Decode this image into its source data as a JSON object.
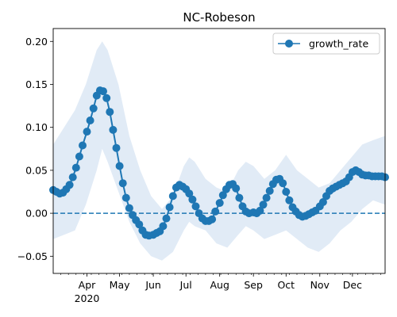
{
  "chart_data": {
    "type": "line",
    "title": "NC-Robeson",
    "xlabel": "",
    "ylabel": "",
    "x_range": [
      "2020-03-01",
      "2020-12-31"
    ],
    "ylim": [
      -0.07,
      0.215
    ],
    "yticks": [
      -0.05,
      0.0,
      0.05,
      0.1,
      0.15,
      0.2
    ],
    "ytick_labels": [
      "−0.05",
      "0.00",
      "0.05",
      "0.10",
      "0.15",
      "0.20"
    ],
    "xticks": [
      "2020-04-01",
      "2020-05-01",
      "2020-06-01",
      "2020-07-01",
      "2020-08-01",
      "2020-09-01",
      "2020-10-01",
      "2020-11-01",
      "2020-12-01"
    ],
    "xtick_labels": [
      "Apr",
      "May",
      "Jun",
      "Jul",
      "Aug",
      "Sep",
      "Oct",
      "Nov",
      "Dec"
    ],
    "year_label": "2020",
    "grid": false,
    "legend": {
      "position": "top-right",
      "entries": [
        "growth_rate"
      ]
    },
    "reference_line": {
      "y": 0.0,
      "style": "dashed",
      "color": "#1f77b4"
    },
    "series": [
      {
        "name": "growth_rate",
        "color": "#1f77b4",
        "marker": "circle",
        "x": [
          "2020-03-01",
          "2020-03-04",
          "2020-03-07",
          "2020-03-10",
          "2020-03-13",
          "2020-03-16",
          "2020-03-19",
          "2020-03-22",
          "2020-03-25",
          "2020-03-28",
          "2020-04-01",
          "2020-04-04",
          "2020-04-07",
          "2020-04-10",
          "2020-04-13",
          "2020-04-16",
          "2020-04-19",
          "2020-04-22",
          "2020-04-25",
          "2020-04-28",
          "2020-05-01",
          "2020-05-04",
          "2020-05-07",
          "2020-05-10",
          "2020-05-13",
          "2020-05-16",
          "2020-05-19",
          "2020-05-22",
          "2020-05-25",
          "2020-05-28",
          "2020-06-01",
          "2020-06-04",
          "2020-06-07",
          "2020-06-10",
          "2020-06-13",
          "2020-06-16",
          "2020-06-19",
          "2020-06-22",
          "2020-06-25",
          "2020-06-28",
          "2020-07-01",
          "2020-07-04",
          "2020-07-07",
          "2020-07-10",
          "2020-07-13",
          "2020-07-16",
          "2020-07-19",
          "2020-07-22",
          "2020-07-25",
          "2020-07-28",
          "2020-08-01",
          "2020-08-04",
          "2020-08-07",
          "2020-08-10",
          "2020-08-13",
          "2020-08-16",
          "2020-08-19",
          "2020-08-22",
          "2020-08-25",
          "2020-08-28",
          "2020-09-01",
          "2020-09-04",
          "2020-09-07",
          "2020-09-10",
          "2020-09-13",
          "2020-09-16",
          "2020-09-19",
          "2020-09-22",
          "2020-09-25",
          "2020-09-28",
          "2020-10-01",
          "2020-10-04",
          "2020-10-07",
          "2020-10-10",
          "2020-10-13",
          "2020-10-16",
          "2020-10-19",
          "2020-10-22",
          "2020-10-25",
          "2020-10-28",
          "2020-11-01",
          "2020-11-04",
          "2020-11-07",
          "2020-11-10",
          "2020-11-13",
          "2020-11-16",
          "2020-11-19",
          "2020-11-22",
          "2020-11-25",
          "2020-11-28",
          "2020-12-01",
          "2020-12-04",
          "2020-12-07",
          "2020-12-10",
          "2020-12-13",
          "2020-12-16",
          "2020-12-19",
          "2020-12-22",
          "2020-12-25",
          "2020-12-28",
          "2020-12-31"
        ],
        "y": [
          0.027,
          0.025,
          0.023,
          0.024,
          0.028,
          0.033,
          0.042,
          0.053,
          0.066,
          0.079,
          0.095,
          0.108,
          0.122,
          0.137,
          0.143,
          0.142,
          0.134,
          0.118,
          0.097,
          0.076,
          0.055,
          0.035,
          0.018,
          0.006,
          -0.002,
          -0.008,
          -0.013,
          -0.02,
          -0.025,
          -0.026,
          -0.025,
          -0.023,
          -0.021,
          -0.015,
          -0.006,
          0.007,
          0.02,
          0.03,
          0.033,
          0.031,
          0.028,
          0.023,
          0.016,
          0.008,
          0.0,
          -0.006,
          -0.009,
          -0.009,
          -0.007,
          0.002,
          0.012,
          0.021,
          0.028,
          0.033,
          0.034,
          0.029,
          0.018,
          0.008,
          0.002,
          0.0,
          0.001,
          0.0,
          0.003,
          0.01,
          0.018,
          0.026,
          0.034,
          0.039,
          0.04,
          0.035,
          0.025,
          0.015,
          0.007,
          0.002,
          -0.002,
          -0.004,
          -0.003,
          -0.001,
          0.001,
          0.003,
          0.008,
          0.013,
          0.02,
          0.026,
          0.029,
          0.031,
          0.033,
          0.035,
          0.037,
          0.042,
          0.048,
          0.05,
          0.048,
          0.045,
          0.044,
          0.044,
          0.043,
          0.043,
          0.043,
          0.043,
          0.042
        ]
      }
    ],
    "band": {
      "name": "uncertainty",
      "color": "#dce8f5",
      "x": [
        "2020-03-01",
        "2020-03-11",
        "2020-03-21",
        "2020-03-31",
        "2020-04-10",
        "2020-04-15",
        "2020-04-20",
        "2020-04-30",
        "2020-05-10",
        "2020-05-20",
        "2020-05-30",
        "2020-06-09",
        "2020-06-19",
        "2020-06-29",
        "2020-07-04",
        "2020-07-09",
        "2020-07-19",
        "2020-07-29",
        "2020-08-08",
        "2020-08-18",
        "2020-08-25",
        "2020-09-01",
        "2020-09-11",
        "2020-09-21",
        "2020-10-01",
        "2020-10-11",
        "2020-10-21",
        "2020-10-31",
        "2020-11-10",
        "2020-11-20",
        "2020-11-30",
        "2020-12-10",
        "2020-12-20",
        "2020-12-31"
      ],
      "upper": [
        0.08,
        0.1,
        0.12,
        0.15,
        0.19,
        0.2,
        0.19,
        0.15,
        0.09,
        0.05,
        0.02,
        0.005,
        0.02,
        0.055,
        0.065,
        0.06,
        0.04,
        0.03,
        0.025,
        0.05,
        0.06,
        0.055,
        0.04,
        0.05,
        0.068,
        0.05,
        0.04,
        0.03,
        0.035,
        0.05,
        0.065,
        0.08,
        0.085,
        0.09
      ],
      "lower": [
        -0.03,
        -0.025,
        -0.02,
        0.01,
        0.05,
        0.075,
        0.06,
        0.025,
        -0.01,
        -0.035,
        -0.05,
        -0.055,
        -0.045,
        -0.02,
        -0.01,
        -0.015,
        -0.02,
        -0.035,
        -0.04,
        -0.025,
        -0.015,
        -0.02,
        -0.03,
        -0.025,
        -0.02,
        -0.03,
        -0.04,
        -0.045,
        -0.035,
        -0.02,
        -0.01,
        0.005,
        0.015,
        0.01
      ]
    }
  }
}
